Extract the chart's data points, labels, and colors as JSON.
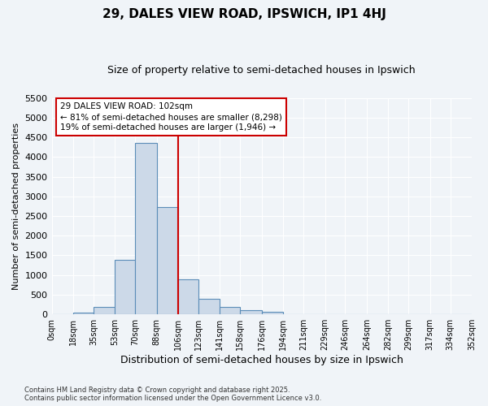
{
  "title": "29, DALES VIEW ROAD, IPSWICH, IP1 4HJ",
  "subtitle": "Size of property relative to semi-detached houses in Ipswich",
  "xlabel": "Distribution of semi-detached houses by size in Ipswich",
  "ylabel": "Number of semi-detached properties",
  "footnote": "Contains HM Land Registry data © Crown copyright and database right 2025.\nContains public sector information licensed under the Open Government Licence v3.0.",
  "bin_edges": [
    0,
    18,
    35,
    53,
    70,
    88,
    106,
    123,
    141,
    158,
    176,
    194,
    211,
    229,
    246,
    264,
    282,
    299,
    317,
    334,
    352
  ],
  "bar_heights": [
    5,
    50,
    200,
    1380,
    4350,
    2720,
    900,
    400,
    200,
    100,
    70,
    0,
    0,
    0,
    0,
    0,
    0,
    0,
    0,
    0
  ],
  "bar_color": "#ccd9e8",
  "bar_edge_color": "#5b8db8",
  "bg_color": "#f0f4f8",
  "grid_color": "#ffffff",
  "vline_x": 106,
  "vline_color": "#cc0000",
  "annotation_line1": "29 DALES VIEW ROAD: 102sqm",
  "annotation_line2": "← 81% of semi-detached houses are smaller (8,298)",
  "annotation_line3": "19% of semi-detached houses are larger (1,946) →",
  "ylim": [
    0,
    5500
  ],
  "yticks": [
    0,
    500,
    1000,
    1500,
    2000,
    2500,
    3000,
    3500,
    4000,
    4500,
    5000,
    5500
  ],
  "tick_labels": [
    "0sqm",
    "18sqm",
    "35sqm",
    "53sqm",
    "70sqm",
    "88sqm",
    "106sqm",
    "123sqm",
    "141sqm",
    "158sqm",
    "176sqm",
    "194sqm",
    "211sqm",
    "229sqm",
    "246sqm",
    "264sqm",
    "282sqm",
    "299sqm",
    "317sqm",
    "334sqm",
    "352sqm"
  ]
}
